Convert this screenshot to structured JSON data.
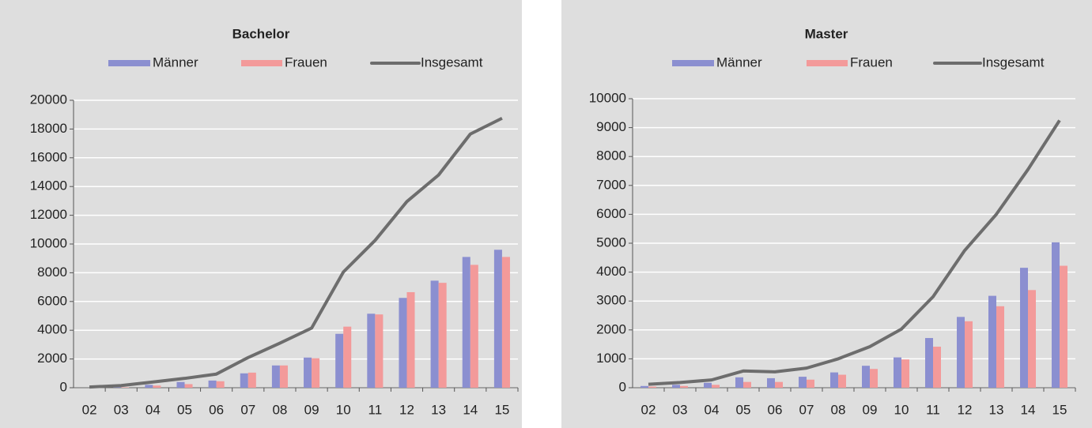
{
  "chart_data": [
    {
      "type": "bar",
      "title": "Bachelor",
      "categories": [
        "02",
        "03",
        "04",
        "05",
        "06",
        "07",
        "08",
        "09",
        "10",
        "11",
        "12",
        "13",
        "14",
        "15"
      ],
      "series": [
        {
          "name": "Männer",
          "color": "#8b8fd0",
          "values": [
            0,
            50,
            200,
            400,
            500,
            1000,
            1550,
            2100,
            3750,
            5150,
            6250,
            7450,
            9100,
            9600
          ]
        },
        {
          "name": "Frauen",
          "color": "#f39a9a",
          "values": [
            0,
            30,
            150,
            250,
            450,
            1050,
            1550,
            2050,
            4250,
            5100,
            6650,
            7300,
            8550,
            9100
          ]
        },
        {
          "name": "Insgesamt",
          "color": "#6d6d6d",
          "type": "line",
          "values": [
            50,
            150,
            400,
            650,
            950,
            2100,
            3100,
            4150,
            8050,
            10250,
            12950,
            14800,
            17650,
            18750
          ]
        }
      ],
      "ylim": [
        0,
        20000
      ],
      "yticks": [
        0,
        2000,
        4000,
        6000,
        8000,
        10000,
        12000,
        14000,
        16000,
        18000,
        20000
      ],
      "grid": true
    },
    {
      "type": "bar",
      "title": "Master",
      "categories": [
        "02",
        "03",
        "04",
        "05",
        "06",
        "07",
        "08",
        "09",
        "10",
        "11",
        "12",
        "13",
        "14",
        "15"
      ],
      "series": [
        {
          "name": "Männer",
          "color": "#8b8fd0",
          "values": [
            60,
            100,
            170,
            360,
            330,
            380,
            530,
            760,
            1050,
            1720,
            2450,
            3180,
            4150,
            5030
          ]
        },
        {
          "name": "Frauen",
          "color": "#f39a9a",
          "values": [
            40,
            60,
            100,
            200,
            200,
            280,
            450,
            650,
            980,
            1420,
            2300,
            2820,
            3380,
            4220
          ]
        },
        {
          "name": "Insgesamt",
          "color": "#6d6d6d",
          "type": "line",
          "values": [
            120,
            180,
            270,
            580,
            550,
            680,
            1000,
            1420,
            2030,
            3150,
            4750,
            6000,
            7550,
            9250
          ]
        }
      ],
      "ylim": [
        0,
        10000
      ],
      "yticks": [
        0,
        1000,
        2000,
        3000,
        4000,
        5000,
        6000,
        7000,
        8000,
        9000,
        10000
      ],
      "grid": true
    }
  ]
}
